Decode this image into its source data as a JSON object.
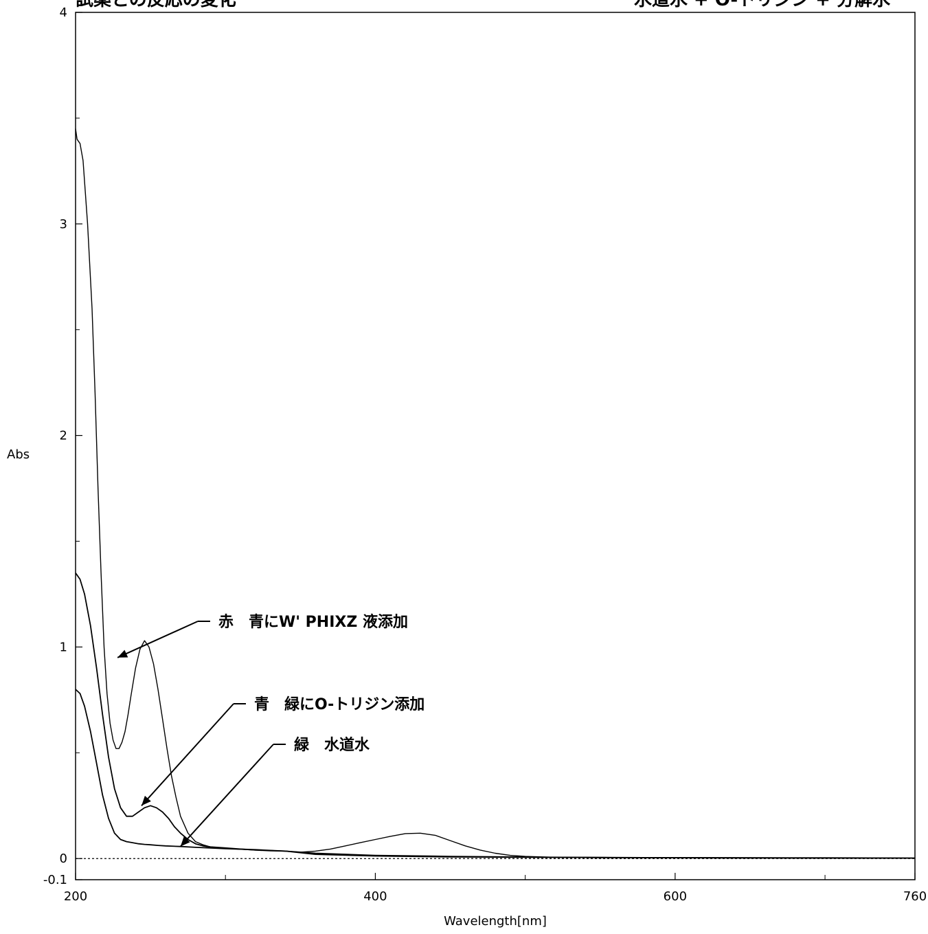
{
  "chart_data": {
    "type": "line",
    "title": "試薬との反応の変化",
    "subtitle": "水道水 + O-トリジン + 分解水",
    "xlabel": "Wavelength[nm]",
    "ylabel": "Abs",
    "xlim": [
      200,
      760
    ],
    "ylim": [
      -0.1,
      4
    ],
    "x_ticks": [
      200,
      400,
      600,
      760
    ],
    "y_ticks": [
      -0.1,
      0,
      1,
      2,
      3,
      4
    ],
    "y_tick_labels": [
      "-0.1",
      "0",
      "1",
      "2",
      "3",
      "4"
    ],
    "grid": false,
    "baseline": 0,
    "series": [
      {
        "name": "赤　青にW' PHIXZ 液添加",
        "label_text": "赤　青にW' PHIXZ 液添加",
        "x": [
          200,
          201,
          203,
          205,
          208,
          211,
          213,
          215,
          217,
          219,
          221,
          223,
          225,
          227,
          229,
          231,
          233,
          235,
          237,
          240,
          243,
          246,
          249,
          252,
          255,
          258,
          261,
          264,
          267,
          270,
          275,
          280,
          285,
          290,
          300,
          310,
          320,
          330,
          340,
          350,
          360,
          370,
          380,
          390,
          400,
          410,
          420,
          430,
          440,
          450,
          460,
          470,
          480,
          490,
          500,
          520,
          550,
          600,
          650,
          700,
          760
        ],
        "y": [
          3.45,
          3.4,
          3.38,
          3.3,
          3.0,
          2.6,
          2.2,
          1.75,
          1.35,
          1.0,
          0.78,
          0.64,
          0.56,
          0.52,
          0.52,
          0.55,
          0.6,
          0.68,
          0.77,
          0.9,
          0.99,
          1.03,
          1.0,
          0.92,
          0.8,
          0.66,
          0.52,
          0.39,
          0.29,
          0.2,
          0.12,
          0.08,
          0.065,
          0.055,
          0.048,
          0.044,
          0.04,
          0.038,
          0.035,
          0.03,
          0.035,
          0.045,
          0.06,
          0.075,
          0.09,
          0.105,
          0.118,
          0.12,
          0.11,
          0.085,
          0.06,
          0.04,
          0.025,
          0.015,
          0.01,
          0.006,
          0.004,
          0.003,
          0.002,
          0.002,
          0.002
        ]
      },
      {
        "name": "青　緑にO-トリジン添加",
        "label_text": "青　緑にO-トリジン添加",
        "x": [
          200,
          203,
          206,
          210,
          214,
          218,
          222,
          226,
          230,
          234,
          238,
          242,
          246,
          250,
          254,
          258,
          262,
          266,
          270,
          275,
          280,
          285,
          290,
          300,
          310,
          320,
          330,
          340,
          360,
          400,
          450,
          500,
          550,
          600,
          700,
          760
        ],
        "y": [
          1.35,
          1.32,
          1.25,
          1.1,
          0.9,
          0.68,
          0.48,
          0.33,
          0.24,
          0.2,
          0.2,
          0.22,
          0.24,
          0.25,
          0.24,
          0.22,
          0.19,
          0.15,
          0.12,
          0.09,
          0.07,
          0.06,
          0.055,
          0.05,
          0.045,
          0.04,
          0.037,
          0.035,
          0.025,
          0.015,
          0.01,
          0.007,
          0.005,
          0.004,
          0.003,
          0.002
        ]
      },
      {
        "name": "緑　水道水",
        "label_text": "緑　水道水",
        "x": [
          200,
          203,
          206,
          210,
          214,
          218,
          222,
          226,
          230,
          234,
          238,
          242,
          246,
          250,
          255,
          260,
          270,
          280,
          300,
          320,
          340,
          360,
          400,
          450,
          500,
          550,
          600,
          700,
          760
        ],
        "y": [
          0.8,
          0.78,
          0.72,
          0.6,
          0.45,
          0.3,
          0.19,
          0.12,
          0.09,
          0.08,
          0.075,
          0.07,
          0.067,
          0.065,
          0.062,
          0.06,
          0.057,
          0.053,
          0.047,
          0.042,
          0.035,
          0.02,
          0.012,
          0.008,
          0.006,
          0.005,
          0.004,
          0.003,
          0.002
        ]
      }
    ],
    "annotations": [
      {
        "series": 0,
        "text": "赤　青にW' PHIXZ 液添加",
        "arrow_to": [
          228,
          0.95
        ]
      },
      {
        "series": 1,
        "text": "青　緑にO-トリジン添加",
        "arrow_to": [
          244,
          0.25
        ]
      },
      {
        "series": 2,
        "text": "緑　水道水",
        "arrow_to": [
          270,
          0.057
        ]
      }
    ]
  }
}
